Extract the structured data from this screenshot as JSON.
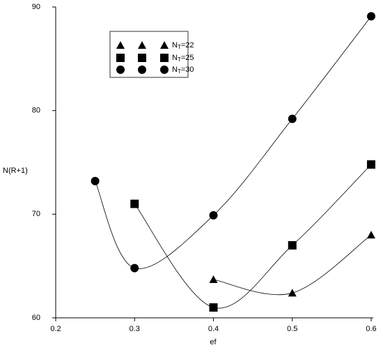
{
  "chart_data": {
    "type": "line",
    "x_label": "ef",
    "y_label": "N(R+1)",
    "xlim": [
      0.2,
      0.6
    ],
    "xticks": [
      0.2,
      0.3,
      0.4,
      0.5,
      0.6
    ],
    "ylim": [
      60,
      90
    ],
    "yticks": [
      60,
      70,
      80,
      90
    ],
    "series": [
      {
        "name": "NT=22",
        "marker": "triangle",
        "color": "#000000",
        "x": [
          0.4,
          0.5,
          0.6
        ],
        "values": [
          63.7,
          62.4,
          68.0
        ]
      },
      {
        "name": "NT=25",
        "marker": "square",
        "color": "#000000",
        "x": [
          0.3,
          0.4,
          0.5,
          0.6
        ],
        "values": [
          71.0,
          61.0,
          67.0,
          74.8
        ]
      },
      {
        "name": "NT=30",
        "marker": "circle",
        "color": "#000000",
        "x": [
          0.25,
          0.3,
          0.4,
          0.5,
          0.6
        ],
        "values": [
          73.2,
          64.8,
          69.9,
          79.2,
          89.1
        ]
      }
    ]
  }
}
